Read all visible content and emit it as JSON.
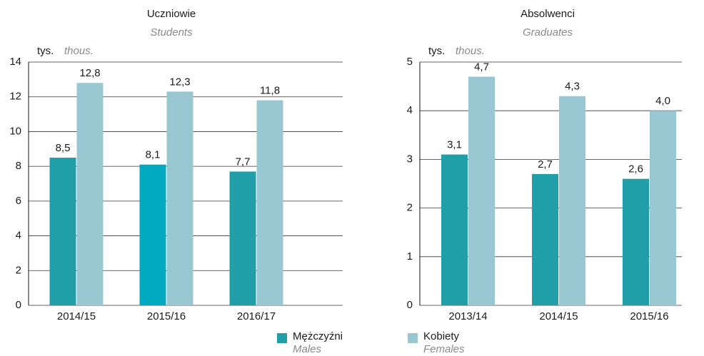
{
  "chart_data": [
    {
      "type": "bar",
      "title": "Uczniowie",
      "subtitle": "Students",
      "unit": "tys.",
      "unit_en": "thous.",
      "categories": [
        "2014/15",
        "2015/16",
        "2016/17"
      ],
      "series": [
        {
          "color": "#219fa8",
          "colors": [
            "#219fa8",
            "#00a8c0",
            "#219fa8"
          ],
          "values": [
            8.5,
            8.1,
            7.7
          ],
          "value_labels": [
            "8,5",
            "8,1",
            "7,7"
          ]
        },
        {
          "color": "#98c7d2",
          "values": [
            12.8,
            12.3,
            11.8
          ],
          "value_labels": [
            "12,8",
            "12,3",
            "11,8"
          ]
        }
      ],
      "ylim": [
        0,
        14
      ],
      "yticks": [
        0,
        2,
        4,
        6,
        8,
        10,
        12,
        14
      ],
      "grid": true
    },
    {
      "type": "bar",
      "title": "Absolwenci",
      "subtitle": "Graduates",
      "unit": "tys.",
      "unit_en": "thous.",
      "categories": [
        "2013/14",
        "2014/15",
        "2015/16"
      ],
      "series": [
        {
          "color": "#219fa8",
          "values": [
            3.1,
            2.7,
            2.6
          ],
          "value_labels": [
            "3,1",
            "2,7",
            "2,6"
          ]
        },
        {
          "color": "#98c7d2",
          "values": [
            4.7,
            4.3,
            4.0
          ],
          "value_labels": [
            "4,7",
            "4,3",
            "4,0"
          ]
        }
      ],
      "ylim": [
        0,
        5
      ],
      "yticks": [
        0,
        1,
        2,
        3,
        4,
        5
      ],
      "grid": true
    }
  ],
  "legend": [
    {
      "name": "Mężczyźni",
      "name_en": "Males",
      "color": "#219fa8"
    },
    {
      "name": "Kobiety",
      "name_en": "Females",
      "color": "#98c7d2"
    }
  ]
}
